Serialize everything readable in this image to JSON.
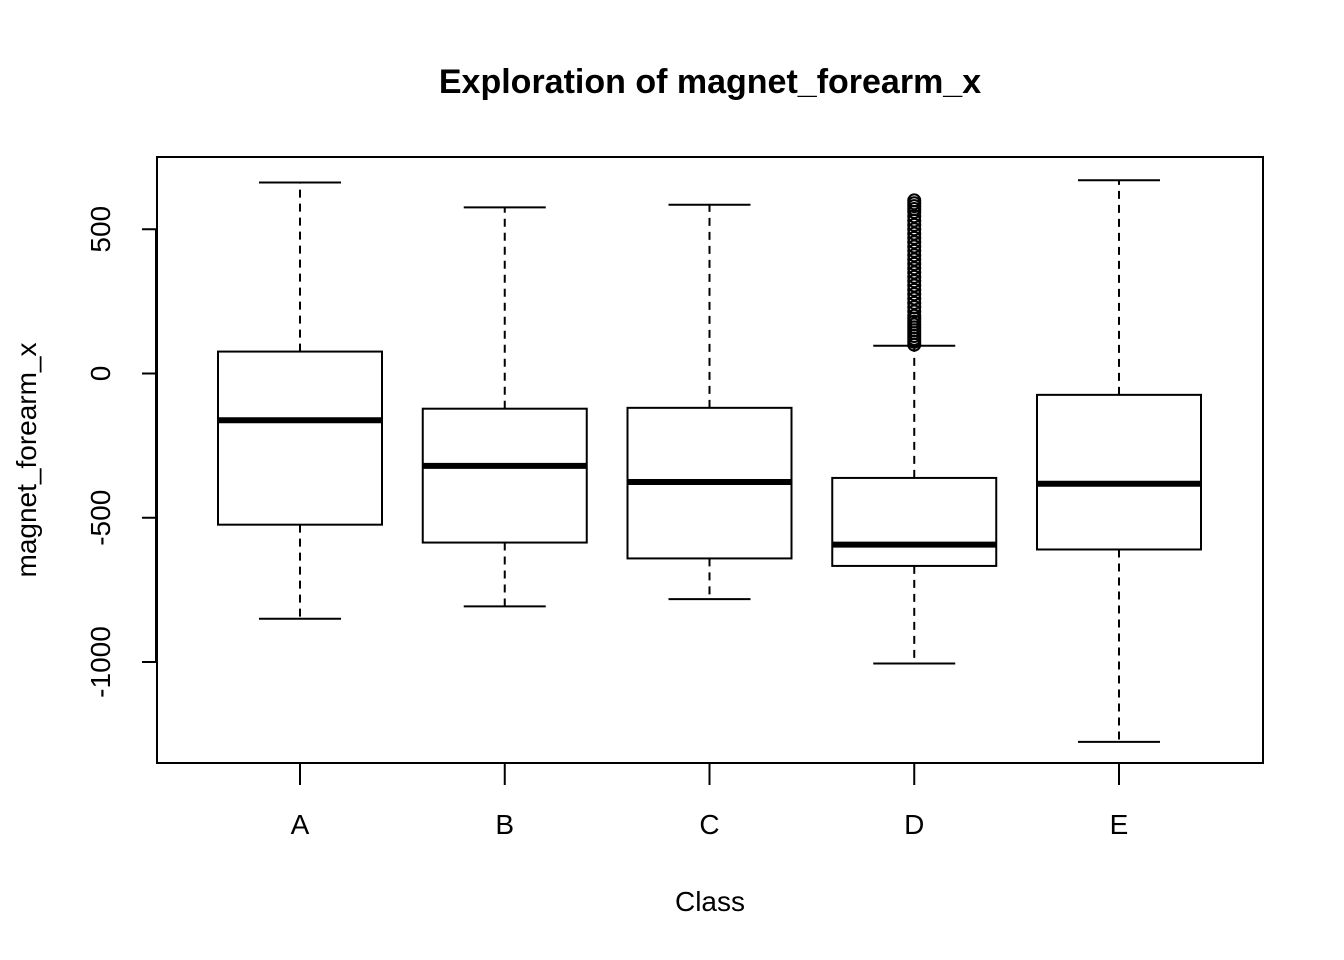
{
  "chart_data": {
    "type": "boxplot",
    "title": "Exploration of  magnet_forearm_x",
    "xlabel": "Class",
    "ylabel": "magnet_forearm_x",
    "ylim": [
      -1350,
      750
    ],
    "yticks": [
      -1000,
      -500,
      0,
      500
    ],
    "grid": false,
    "legend": "none",
    "categories": [
      "A",
      "B",
      "C",
      "D",
      "E"
    ],
    "boxes": [
      {
        "category": "A",
        "whisker_low": -850,
        "q1": -524,
        "median": -162,
        "q3": 76,
        "whisker_high": 662,
        "outliers": []
      },
      {
        "category": "B",
        "whisker_low": -807,
        "q1": -586,
        "median": -320,
        "q3": -122,
        "whisker_high": 576,
        "outliers": []
      },
      {
        "category": "C",
        "whisker_low": -782,
        "q1": -641,
        "median": -376,
        "q3": -119,
        "whisker_high": 585,
        "outliers": []
      },
      {
        "category": "D",
        "whisker_low": -1005,
        "q1": -667,
        "median": -593,
        "q3": -362,
        "whisker_high": 96,
        "outliers": [
          100,
          110,
          120,
          130,
          140,
          150,
          160,
          170,
          180,
          190,
          200,
          215,
          230,
          245,
          260,
          275,
          290,
          305,
          320,
          335,
          350,
          365,
          380,
          395,
          410,
          425,
          440,
          455,
          470,
          485,
          500,
          515,
          530,
          545,
          560,
          570,
          580,
          590,
          600
        ]
      },
      {
        "category": "E",
        "whisker_low": -1277,
        "q1": -610,
        "median": -382,
        "q3": -74,
        "whisker_high": 670,
        "outliers": []
      }
    ]
  }
}
